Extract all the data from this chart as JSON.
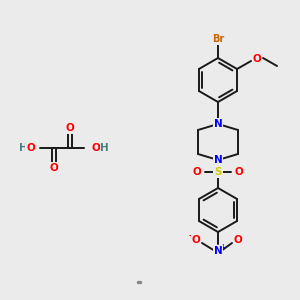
{
  "bg_color": "#ebebeb",
  "bond_color": "#1a1a1a",
  "atom_colors": {
    "O": "#ff0000",
    "N": "#0000ff",
    "Br": "#cc6600",
    "S": "#cccc00",
    "H": "#4a8080",
    "C": "#1a1a1a"
  },
  "figsize": [
    3.0,
    3.0
  ],
  "dpi": 100
}
